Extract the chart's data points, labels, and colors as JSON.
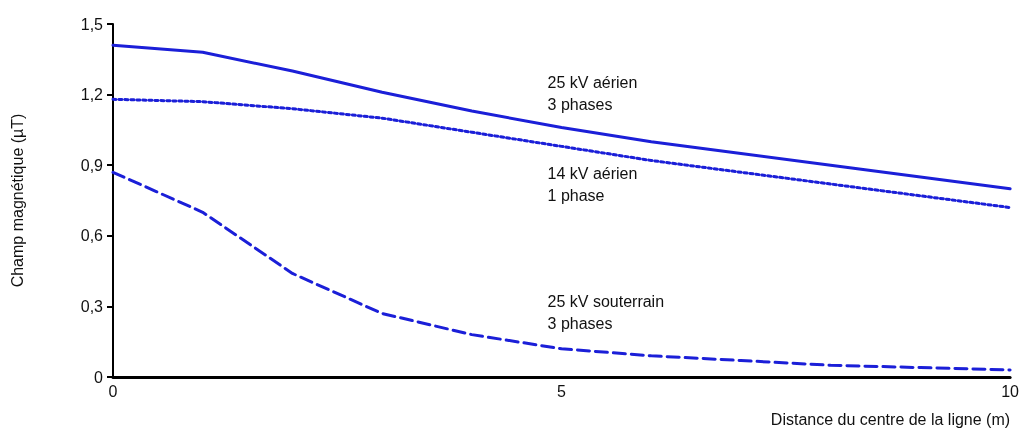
{
  "chart_data": {
    "type": "line",
    "xlabel": "Distance du centre de la ligne (m)",
    "ylabel": "Champ magnétique (µT)",
    "x": [
      0,
      1,
      2,
      3,
      4,
      5,
      6,
      7,
      8,
      9,
      10
    ],
    "series": [
      {
        "name": "25 kV aérien\n3 phases",
        "color": "#1b1fd8",
        "line_style": "solid",
        "values": [
          1.41,
          1.38,
          1.3,
          1.21,
          1.13,
          1.06,
          1.0,
          0.95,
          0.9,
          0.85,
          0.8
        ]
      },
      {
        "name": "14 kV aérien\n1 phase",
        "color": "#1b1fd8",
        "line_style": "dotted",
        "values": [
          1.18,
          1.17,
          1.14,
          1.1,
          1.04,
          0.98,
          0.92,
          0.87,
          0.82,
          0.77,
          0.72
        ]
      },
      {
        "name": "25 kV souterrain\n3 phases",
        "color": "#1b1fd8",
        "line_style": "dashed",
        "values": [
          0.87,
          0.7,
          0.44,
          0.27,
          0.18,
          0.12,
          0.09,
          0.07,
          0.05,
          0.04,
          0.03
        ]
      }
    ],
    "xlim": [
      0,
      10
    ],
    "xticks": [
      0,
      5,
      10
    ],
    "ylim": [
      0,
      1.5
    ],
    "yticks": [
      {
        "value": 0,
        "label": "0"
      },
      {
        "value": 0.3,
        "label": "0,3"
      },
      {
        "value": 0.6,
        "label": "0,6"
      },
      {
        "value": 0.9,
        "label": "0,9"
      },
      {
        "value": 1.2,
        "label": "1,2"
      },
      {
        "value": 1.5,
        "label": "1,5"
      }
    ],
    "grid": false,
    "legend": false,
    "marker": "none"
  }
}
